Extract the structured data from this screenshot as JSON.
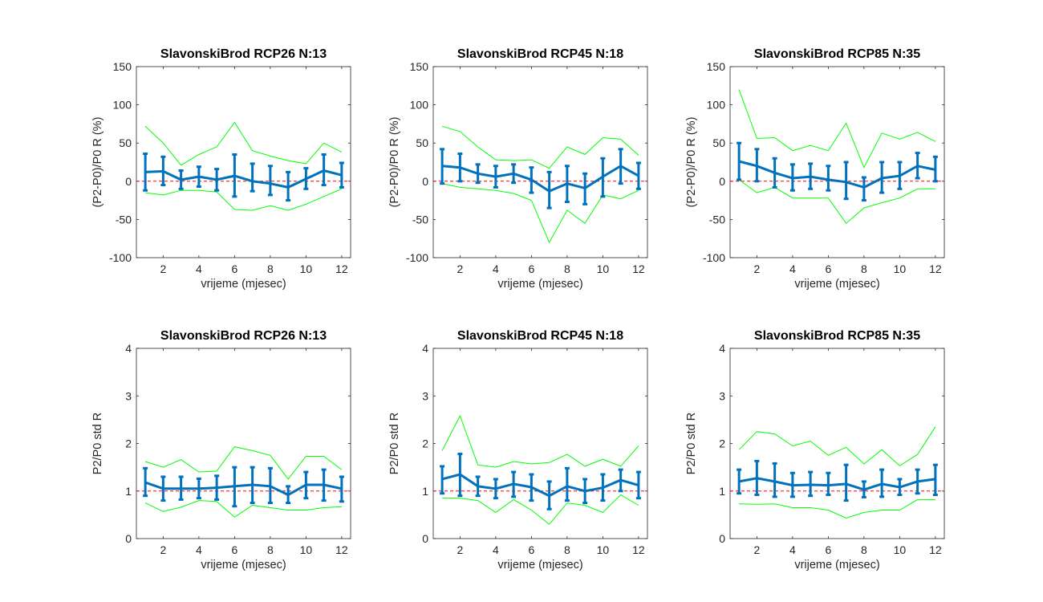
{
  "colors": {
    "mean": "#0072BD",
    "bounds": "#00FF00",
    "reference": "#FF0000",
    "axes": "#262626"
  },
  "chart_data": [
    {
      "type": "line",
      "title": "SlavonskiBrod RCP26 N:13",
      "xlabel": "vrijeme (mjesec)",
      "ylabel": "(P2-P0)/P0 R (%)",
      "xlim": [
        0.5,
        12.5
      ],
      "ylim": [
        -100,
        150
      ],
      "xticks": [
        2,
        4,
        6,
        8,
        10,
        12
      ],
      "yticks": [
        -100,
        -50,
        0,
        50,
        100,
        150
      ],
      "reference_line": 0,
      "x": [
        1,
        2,
        3,
        4,
        5,
        6,
        7,
        8,
        9,
        10,
        11,
        12
      ],
      "mean": [
        12,
        13,
        2,
        6,
        2,
        7,
        0,
        -3,
        -8,
        3,
        14,
        8
      ],
      "error_low": [
        -12,
        -5,
        -10,
        -7,
        -12,
        -20,
        -13,
        -18,
        -25,
        -10,
        -5,
        -8
      ],
      "error_high": [
        36,
        32,
        14,
        19,
        16,
        35,
        23,
        20,
        12,
        17,
        35,
        24
      ],
      "lower_bound": [
        -15,
        -18,
        -12,
        -12,
        -14,
        -37,
        -38,
        -32,
        -38,
        -30,
        -20,
        -10
      ],
      "upper_bound": [
        72,
        50,
        21,
        35,
        45,
        77,
        40,
        33,
        27,
        23,
        50,
        38
      ]
    },
    {
      "type": "line",
      "title": "SlavonskiBrod RCP45 N:18",
      "xlabel": "vrijeme (mjesec)",
      "ylabel": "(P2-P0)/P0 R (%)",
      "xlim": [
        0.5,
        12.5
      ],
      "ylim": [
        -100,
        150
      ],
      "xticks": [
        2,
        4,
        6,
        8,
        10,
        12
      ],
      "yticks": [
        -100,
        -50,
        0,
        50,
        100,
        150
      ],
      "reference_line": 0,
      "x": [
        1,
        2,
        3,
        4,
        5,
        6,
        7,
        8,
        9,
        10,
        11,
        12
      ],
      "mean": [
        20,
        18,
        10,
        6,
        10,
        2,
        -13,
        -3,
        -9,
        6,
        20,
        7
      ],
      "error_low": [
        -3,
        0,
        -2,
        -8,
        -2,
        -15,
        -35,
        -27,
        -30,
        -20,
        -3,
        -10
      ],
      "error_high": [
        42,
        36,
        22,
        20,
        22,
        18,
        12,
        20,
        10,
        30,
        42,
        24
      ],
      "lower_bound": [
        -3,
        -8,
        -10,
        -12,
        -16,
        -25,
        -80,
        -38,
        -55,
        -18,
        -23,
        -12
      ],
      "upper_bound": [
        72,
        65,
        45,
        28,
        27,
        28,
        17,
        45,
        35,
        57,
        55,
        34
      ]
    },
    {
      "type": "line",
      "title": "SlavonskiBrod RCP85 N:35",
      "xlabel": "vrijeme (mjesec)",
      "ylabel": "(P2-P0)/P0 R (%)",
      "xlim": [
        0.5,
        12.5
      ],
      "ylim": [
        -100,
        150
      ],
      "xticks": [
        2,
        4,
        6,
        8,
        10,
        12
      ],
      "yticks": [
        -100,
        -50,
        0,
        50,
        100,
        150
      ],
      "reference_line": 0,
      "x": [
        1,
        2,
        3,
        4,
        5,
        6,
        7,
        8,
        9,
        10,
        11,
        12
      ],
      "mean": [
        26,
        20,
        11,
        4,
        6,
        2,
        -1,
        -8,
        4,
        7,
        20,
        15
      ],
      "error_low": [
        2,
        0,
        -8,
        -12,
        -10,
        -12,
        -23,
        -25,
        -15,
        -10,
        4,
        0
      ],
      "error_high": [
        50,
        42,
        30,
        22,
        23,
        20,
        25,
        5,
        25,
        25,
        37,
        32
      ],
      "lower_bound": [
        2,
        -15,
        -8,
        -22,
        -22,
        -22,
        -55,
        -35,
        -28,
        -22,
        -10,
        -10
      ],
      "upper_bound": [
        120,
        56,
        57,
        40,
        47,
        40,
        76,
        18,
        63,
        55,
        64,
        52
      ]
    },
    {
      "type": "line",
      "title": "SlavonskiBrod RCP26 N:13",
      "xlabel": "vrijeme (mjesec)",
      "ylabel": "P2/P0 std R",
      "xlim": [
        0.5,
        12.5
      ],
      "ylim": [
        0,
        4
      ],
      "xticks": [
        2,
        4,
        6,
        8,
        10,
        12
      ],
      "yticks": [
        0,
        1,
        2,
        3,
        4
      ],
      "reference_line": 1,
      "x": [
        1,
        2,
        3,
        4,
        5,
        6,
        7,
        8,
        9,
        10,
        11,
        12
      ],
      "mean": [
        1.18,
        1.05,
        1.05,
        1.05,
        1.07,
        1.1,
        1.13,
        1.1,
        0.92,
        1.13,
        1.13,
        1.05
      ],
      "error_low": [
        0.9,
        0.8,
        0.82,
        0.85,
        0.82,
        0.68,
        0.75,
        0.75,
        0.75,
        0.85,
        0.8,
        0.78
      ],
      "error_high": [
        1.48,
        1.3,
        1.3,
        1.26,
        1.32,
        1.5,
        1.5,
        1.48,
        1.1,
        1.4,
        1.45,
        1.3
      ],
      "lower_bound": [
        0.75,
        0.57,
        0.66,
        0.8,
        0.78,
        0.45,
        0.7,
        0.65,
        0.6,
        0.6,
        0.65,
        0.67
      ],
      "upper_bound": [
        1.62,
        1.5,
        1.66,
        1.4,
        1.42,
        1.93,
        1.85,
        1.75,
        1.25,
        1.73,
        1.73,
        1.45
      ]
    },
    {
      "type": "line",
      "title": "SlavonskiBrod RCP45 N:18",
      "xlabel": "vrijeme (mjesec)",
      "ylabel": "P2/P0 std R",
      "xlim": [
        0.5,
        12.5
      ],
      "ylim": [
        0,
        4
      ],
      "xticks": [
        2,
        4,
        6,
        8,
        10,
        12
      ],
      "yticks": [
        0,
        1,
        2,
        3,
        4
      ],
      "reference_line": 1,
      "x": [
        1,
        2,
        3,
        4,
        5,
        6,
        7,
        8,
        9,
        10,
        11,
        12
      ],
      "mean": [
        1.25,
        1.35,
        1.1,
        1.05,
        1.15,
        1.08,
        0.9,
        1.1,
        1.0,
        1.07,
        1.23,
        1.12
      ],
      "error_low": [
        0.95,
        0.9,
        0.9,
        0.85,
        0.88,
        0.8,
        0.62,
        0.8,
        0.75,
        0.8,
        1.0,
        0.85
      ],
      "error_high": [
        1.52,
        1.78,
        1.3,
        1.25,
        1.4,
        1.35,
        1.2,
        1.48,
        1.25,
        1.35,
        1.45,
        1.4
      ],
      "lower_bound": [
        0.85,
        0.85,
        0.8,
        0.55,
        0.82,
        0.6,
        0.3,
        0.75,
        0.7,
        0.55,
        0.92,
        0.7
      ],
      "upper_bound": [
        1.85,
        2.58,
        1.55,
        1.5,
        1.62,
        1.57,
        1.6,
        1.77,
        1.52,
        1.67,
        1.52,
        1.95
      ]
    },
    {
      "type": "line",
      "title": "SlavonskiBrod RCP85 N:35",
      "xlabel": "vrijeme (mjesec)",
      "ylabel": "P2/P0 std R",
      "xlim": [
        0.5,
        12.5
      ],
      "ylim": [
        0,
        4
      ],
      "xticks": [
        2,
        4,
        6,
        8,
        10,
        12
      ],
      "yticks": [
        0,
        1,
        2,
        3,
        4
      ],
      "reference_line": 1,
      "x": [
        1,
        2,
        3,
        4,
        5,
        6,
        7,
        8,
        9,
        10,
        11,
        12
      ],
      "mean": [
        1.2,
        1.27,
        1.2,
        1.12,
        1.13,
        1.12,
        1.15,
        1.03,
        1.15,
        1.08,
        1.2,
        1.25
      ],
      "error_low": [
        0.95,
        0.92,
        0.88,
        0.88,
        0.9,
        0.92,
        0.8,
        0.87,
        0.88,
        0.92,
        0.95,
        0.92
      ],
      "error_high": [
        1.45,
        1.63,
        1.58,
        1.38,
        1.4,
        1.38,
        1.55,
        1.2,
        1.45,
        1.25,
        1.45,
        1.55
      ],
      "lower_bound": [
        0.73,
        0.72,
        0.73,
        0.65,
        0.65,
        0.6,
        0.43,
        0.55,
        0.6,
        0.6,
        0.82,
        0.82
      ],
      "upper_bound": [
        1.87,
        2.25,
        2.2,
        1.95,
        2.05,
        1.75,
        1.92,
        1.57,
        1.87,
        1.53,
        1.77,
        2.35
      ]
    }
  ]
}
